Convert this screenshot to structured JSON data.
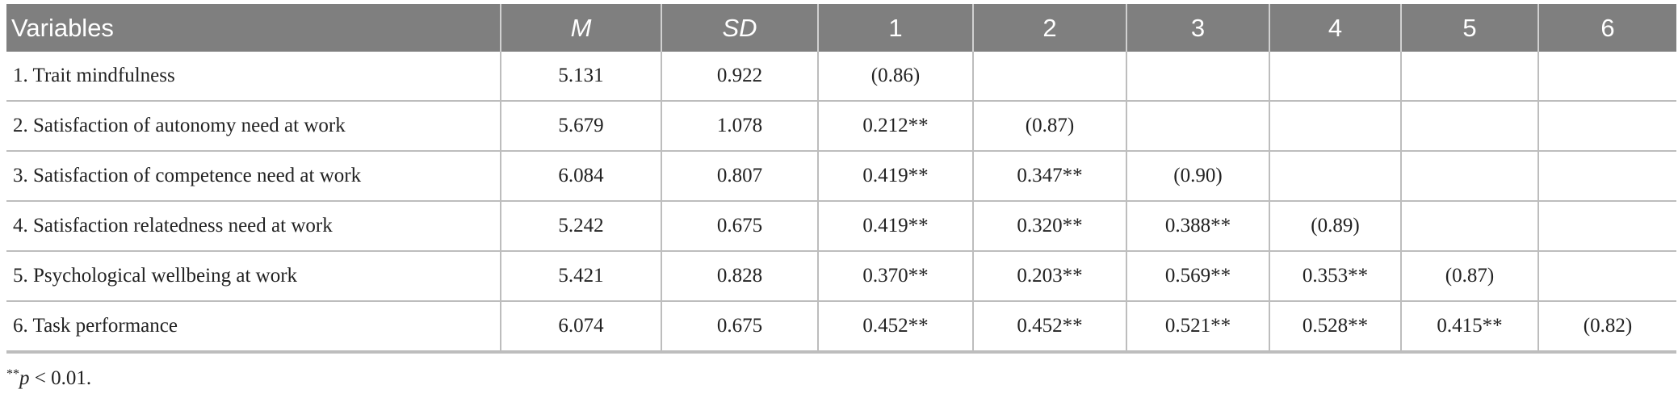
{
  "table": {
    "headers": [
      {
        "label": "Variables",
        "italic": false
      },
      {
        "label": "M",
        "italic": true
      },
      {
        "label": "SD",
        "italic": true
      },
      {
        "label": "1",
        "italic": false
      },
      {
        "label": "2",
        "italic": false
      },
      {
        "label": "3",
        "italic": false
      },
      {
        "label": "4",
        "italic": false
      },
      {
        "label": "5",
        "italic": false
      },
      {
        "label": "6",
        "italic": false
      }
    ],
    "rows": [
      [
        "1. Trait mindfulness",
        "5.131",
        "0.922",
        "(0.86)",
        "",
        "",
        "",
        "",
        ""
      ],
      [
        "2. Satisfaction of autonomy need at work",
        "5.679",
        "1.078",
        "0.212**",
        "(0.87)",
        "",
        "",
        "",
        ""
      ],
      [
        "3. Satisfaction of competence need at work",
        "6.084",
        "0.807",
        "0.419**",
        "0.347**",
        "(0.90)",
        "",
        "",
        ""
      ],
      [
        "4. Satisfaction relatedness need at work",
        "5.242",
        "0.675",
        "0.419**",
        "0.320**",
        "0.388**",
        "(0.89)",
        "",
        ""
      ],
      [
        "5. Psychological wellbeing at work",
        "5.421",
        "0.828",
        "0.370**",
        "0.203**",
        "0.569**",
        "0.353**",
        "(0.87)",
        ""
      ],
      [
        "6. Task performance",
        "6.074",
        "0.675",
        "0.452**",
        "0.452**",
        "0.521**",
        "0.528**",
        "0.415**",
        "(0.82)"
      ]
    ]
  },
  "footnote": {
    "marker": "**",
    "variable": "p",
    "rest": " < 0.01."
  },
  "colors": {
    "header_bg": "#7f7f7f",
    "header_text": "#ffffff",
    "grid": "#bdbdbd"
  }
}
